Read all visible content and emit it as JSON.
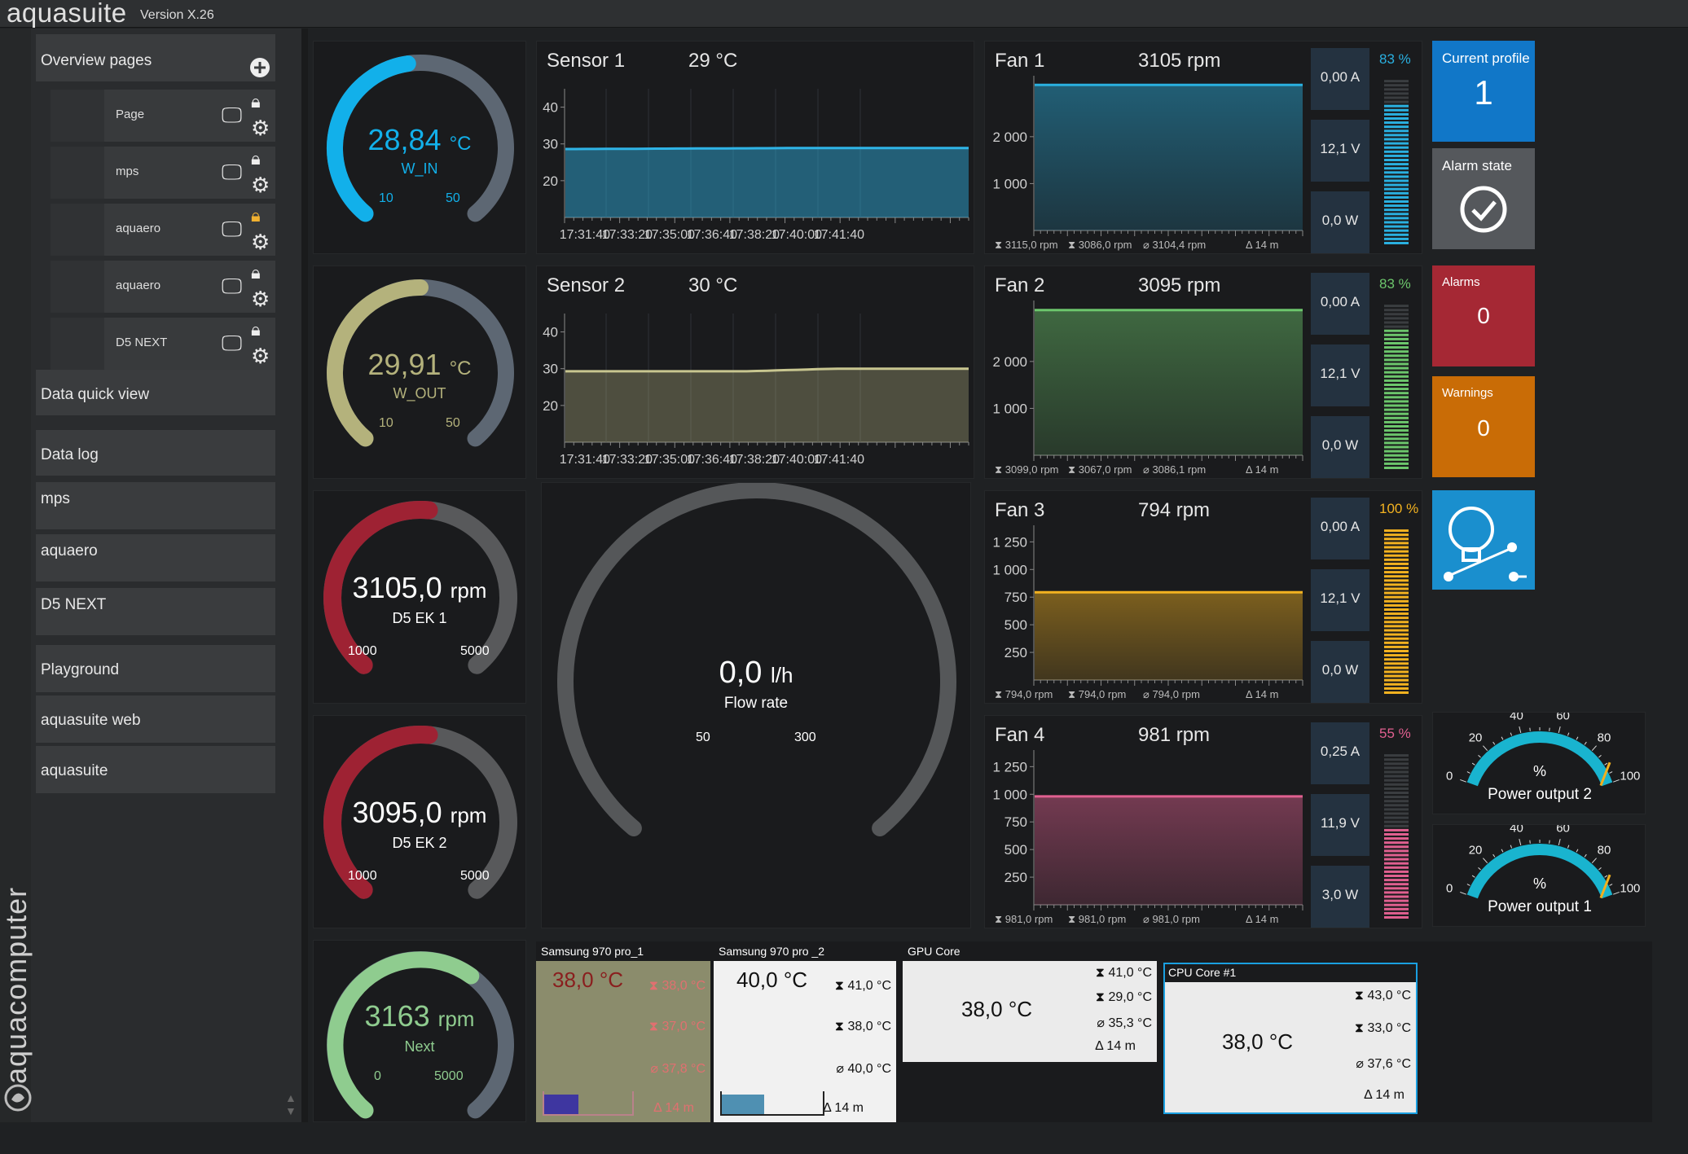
{
  "app": {
    "title": "aquasuite",
    "version": "Version X.26",
    "brand_vertical": "aquacomputer"
  },
  "sidebar": {
    "overview_label": "Overview pages",
    "pages": [
      {
        "name": "Page",
        "lock": "locked"
      },
      {
        "name": "mps",
        "lock": "locked"
      },
      {
        "name": "aquaero",
        "lock": "unlocked"
      },
      {
        "name": "aquaero",
        "lock": "locked"
      },
      {
        "name": "D5 NEXT",
        "lock": "locked"
      }
    ],
    "items": [
      "Data quick view",
      "Data log",
      "mps",
      "aquaero",
      "D5 NEXT",
      "Playground",
      "aquasuite web",
      "aquasuite"
    ]
  },
  "gauges": {
    "w_in": {
      "value": "28,84",
      "unit": "°C",
      "name": "W_IN",
      "min": "10",
      "max": "50",
      "level": 0.47,
      "color": "#12b0ea"
    },
    "w_out": {
      "value": "29,91",
      "unit": "°C",
      "name": "W_OUT",
      "min": "10",
      "max": "50",
      "level": 0.5,
      "color": "#b4b27c"
    },
    "d5ek1": {
      "value": "3105,0",
      "unit": "rpm",
      "name": "D5 EK 1",
      "min": "1000",
      "max": "5000",
      "level": 0.52,
      "color": "#9e2233"
    },
    "d5ek2": {
      "value": "3095,0",
      "unit": "rpm",
      "name": "D5 EK 2",
      "min": "1000",
      "max": "5000",
      "level": 0.52,
      "color": "#9e2233"
    },
    "next": {
      "value": "3163",
      "unit": "rpm",
      "name": "Next",
      "min": "0",
      "max": "5000",
      "level": 0.63,
      "color": "#8fcc8f"
    },
    "flow": {
      "value": "0,0",
      "unit": "l/h",
      "name": "Flow rate",
      "min": "50",
      "max": "300",
      "level": 0.0
    }
  },
  "sensors": [
    {
      "title": "Sensor 1",
      "value": "29 °C",
      "yticks": [
        "40",
        "30",
        "20"
      ],
      "times": [
        "17:31:40",
        "17:33:20",
        "17:35:00",
        "17:36:40",
        "17:38:20",
        "17:40:00",
        "17:41:40"
      ],
      "color": "#2fb4e6"
    },
    {
      "title": "Sensor 2",
      "value": "30 °C",
      "yticks": [
        "40",
        "30",
        "20"
      ],
      "times": [
        "17:31:40",
        "17:33:20",
        "17:35:00",
        "17:36:40",
        "17:38:20",
        "17:40:00",
        "17:41:40"
      ],
      "color": "#c8c690"
    }
  ],
  "fans": [
    {
      "title": "Fan 1",
      "rpm": "3105 rpm",
      "yticks": [
        "2 000",
        "1 000"
      ],
      "footer": [
        "3115,0 rpm",
        "3086,0 rpm",
        "3104,4 rpm",
        "14 m"
      ],
      "amps": "0,00 A",
      "volts": "12,1 V",
      "watts": "0,0 W",
      "pct": "83 %",
      "level": 0.83,
      "color": "#2ab0e0"
    },
    {
      "title": "Fan 2",
      "rpm": "3095 rpm",
      "yticks": [
        "2 000",
        "1 000"
      ],
      "footer": [
        "3099,0 rpm",
        "3067,0 rpm",
        "3086,1 rpm",
        "14 m"
      ],
      "amps": "0,00 A",
      "volts": "12,1 V",
      "watts": "0,0 W",
      "pct": "83 %",
      "level": 0.83,
      "color": "#6cc66c"
    },
    {
      "title": "Fan 3",
      "rpm": "794 rpm",
      "yticks": [
        "1 250",
        "1 000",
        "750",
        "500",
        "250"
      ],
      "footer": [
        "794,0 rpm",
        "794,0 rpm",
        "794,0 rpm",
        "14 m"
      ],
      "amps": "0,00 A",
      "volts": "12,1 V",
      "watts": "0,0 W",
      "pct": "100 %",
      "level": 1.0,
      "color": "#f3b220"
    },
    {
      "title": "Fan 4",
      "rpm": "981 rpm",
      "yticks": [
        "1 250",
        "1 000",
        "750",
        "500",
        "250"
      ],
      "footer": [
        "981,0 rpm",
        "981,0 rpm",
        "981,0 rpm",
        "14 m"
      ],
      "amps": "0,25 A",
      "volts": "11,9 V",
      "watts": "3,0 W",
      "pct": "55 %",
      "level": 0.55,
      "color": "#e06090"
    }
  ],
  "status": {
    "profile_label": "Current profile",
    "profile_value": "1",
    "alarm_state_label": "Alarm state",
    "alarms_label": "Alarms",
    "alarms_value": "0",
    "warnings_label": "Warnings",
    "warnings_value": "0"
  },
  "power": [
    {
      "label": "Power output 2",
      "unit": "%",
      "ticks": [
        "0",
        "20",
        "40",
        "60",
        "80",
        "100"
      ],
      "level": 0.85
    },
    {
      "label": "Power output 1",
      "unit": "%",
      "ticks": [
        "0",
        "20",
        "40",
        "60",
        "80",
        "100"
      ],
      "level": 0.85
    }
  ],
  "bottom": {
    "samsung1": {
      "title": "Samsung 970 pro_1",
      "value": "38,0 °C",
      "max": "38,0 °C",
      "min": "37,0 °C",
      "avg": "37,8 °C",
      "time": "14 m"
    },
    "samsung2": {
      "title": "Samsung 970 pro _2",
      "value": "40,0 °C",
      "max": "41,0 °C",
      "min": "38,0 °C",
      "avg": "40,0 °C",
      "time": "14 m"
    },
    "gpu": {
      "title": "GPU Core",
      "value": "38,0 °C",
      "max": "41,0 °C",
      "min": "29,0 °C",
      "avg": "35,3 °C",
      "time": "14 m"
    },
    "cpu": {
      "title": "CPU Core #1",
      "value": "38,0 °C",
      "max": "43,0 °C",
      "min": "33,0 °C",
      "avg": "37,6 °C",
      "time": "14 m"
    }
  }
}
